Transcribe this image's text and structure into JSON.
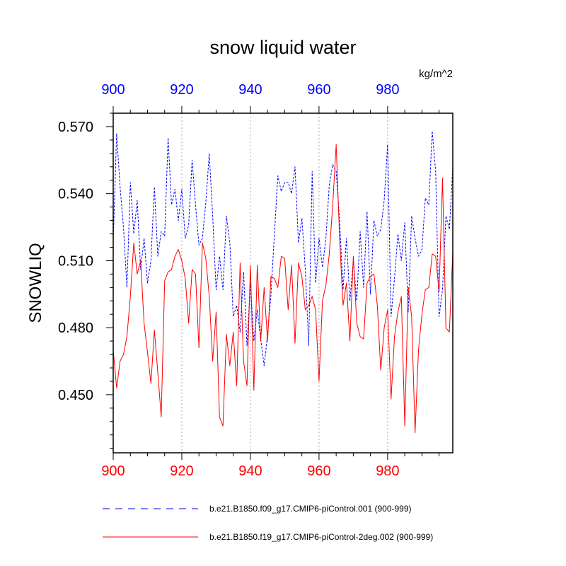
{
  "chart_data": {
    "type": "line",
    "title": "snow liquid water",
    "units": "kg/m^2",
    "ylabel": "SNOWLIQ",
    "xlabel": "",
    "xlim": [
      900,
      999
    ],
    "ylim": [
      0.424,
      0.576
    ],
    "x_ticks": [
      900,
      920,
      940,
      960,
      980
    ],
    "y_ticks": [
      0.45,
      0.48,
      0.51,
      0.54,
      0.57
    ],
    "y_tick_labels": [
      "0.450",
      "0.480",
      "0.510",
      "0.540",
      "0.570"
    ],
    "grid": "vertical dotted at major x ticks",
    "x_start": 900,
    "series": [
      {
        "name": "b.e21.B1850.f09_g17.CMIP6-piControl.001 (900-999)",
        "color": "#0000ff",
        "dash": "dashed",
        "values": [
          0.518,
          0.567,
          0.543,
          0.525,
          0.498,
          0.545,
          0.522,
          0.537,
          0.506,
          0.52,
          0.5,
          0.51,
          0.543,
          0.512,
          0.523,
          0.521,
          0.565,
          0.535,
          0.542,
          0.528,
          0.542,
          0.52,
          0.526,
          0.555,
          0.535,
          0.517,
          0.52,
          0.536,
          0.558,
          0.53,
          0.497,
          0.512,
          0.497,
          0.53,
          0.518,
          0.485,
          0.49,
          0.478,
          0.505,
          0.472,
          0.5,
          0.474,
          0.488,
          0.475,
          0.463,
          0.477,
          0.495,
          0.522,
          0.548,
          0.541,
          0.545,
          0.545,
          0.54,
          0.552,
          0.518,
          0.529,
          0.506,
          0.472,
          0.55,
          0.5,
          0.52,
          0.507,
          0.52,
          0.544,
          0.553,
          0.55,
          0.528,
          0.497,
          0.52,
          0.492,
          0.51,
          0.492,
          0.523,
          0.498,
          0.532,
          0.495,
          0.528,
          0.521,
          0.524,
          0.537,
          0.562,
          0.485,
          0.502,
          0.522,
          0.51,
          0.527,
          0.487,
          0.53,
          0.52,
          0.512,
          0.515,
          0.538,
          0.535,
          0.568,
          0.55,
          0.485,
          0.497,
          0.53,
          0.524,
          0.552
        ]
      },
      {
        "name": "b.e21.B1850.f19_g17.CMIP6-piControl-2deg.002 (900-999)",
        "color": "#ff0000",
        "dash": "solid",
        "values": [
          0.47,
          0.453,
          0.465,
          0.468,
          0.476,
          0.494,
          0.518,
          0.504,
          0.51,
          0.482,
          0.469,
          0.455,
          0.479,
          0.46,
          0.44,
          0.501,
          0.505,
          0.506,
          0.512,
          0.515,
          0.51,
          0.502,
          0.482,
          0.506,
          0.504,
          0.471,
          0.518,
          0.511,
          0.494,
          0.465,
          0.487,
          0.44,
          0.436,
          0.477,
          0.463,
          0.478,
          0.454,
          0.509,
          0.465,
          0.454,
          0.508,
          0.452,
          0.508,
          0.474,
          0.498,
          0.474,
          0.503,
          0.502,
          0.498,
          0.512,
          0.511,
          0.488,
          0.508,
          0.473,
          0.509,
          0.503,
          0.488,
          0.49,
          0.494,
          0.488,
          0.456,
          0.492,
          0.499,
          0.513,
          0.535,
          0.562,
          0.52,
          0.49,
          0.5,
          0.474,
          0.512,
          0.482,
          0.476,
          0.475,
          0.5,
          0.503,
          0.504,
          0.49,
          0.461,
          0.48,
          0.488,
          0.448,
          0.476,
          0.487,
          0.494,
          0.436,
          0.498,
          0.485,
          0.433,
          0.47,
          0.486,
          0.497,
          0.498,
          0.513,
          0.512,
          0.496,
          0.547,
          0.48,
          0.478,
          0.514
        ]
      }
    ]
  }
}
